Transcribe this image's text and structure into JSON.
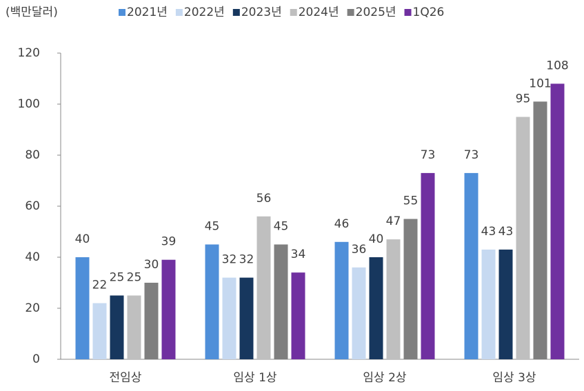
{
  "chart_data": {
    "type": "bar",
    "unit_label": "(백만달러)",
    "categories": [
      "전임상",
      "임상 1상",
      "임상 2상",
      "임상 3상"
    ],
    "series": [
      {
        "name": "2021년",
        "color": "#4f8fd9",
        "values": [
          40,
          45,
          46,
          73
        ]
      },
      {
        "name": "2022년",
        "color": "#c6d9f1",
        "values": [
          22,
          32,
          36,
          43
        ]
      },
      {
        "name": "2023년",
        "color": "#17375e",
        "values": [
          25,
          32,
          40,
          43
        ]
      },
      {
        "name": "2024년",
        "color": "#bfbfbf",
        "values": [
          25,
          56,
          47,
          95
        ]
      },
      {
        "name": "2025년",
        "color": "#7f7f7f",
        "values": [
          30,
          45,
          55,
          101
        ]
      },
      {
        "name": "1Q26",
        "color": "#7030a0",
        "values": [
          39,
          34,
          73,
          108
        ]
      }
    ],
    "ylim": [
      0,
      120
    ],
    "yticks": [
      0,
      20,
      40,
      60,
      80,
      100,
      120
    ],
    "grid": false,
    "legend": "top"
  }
}
